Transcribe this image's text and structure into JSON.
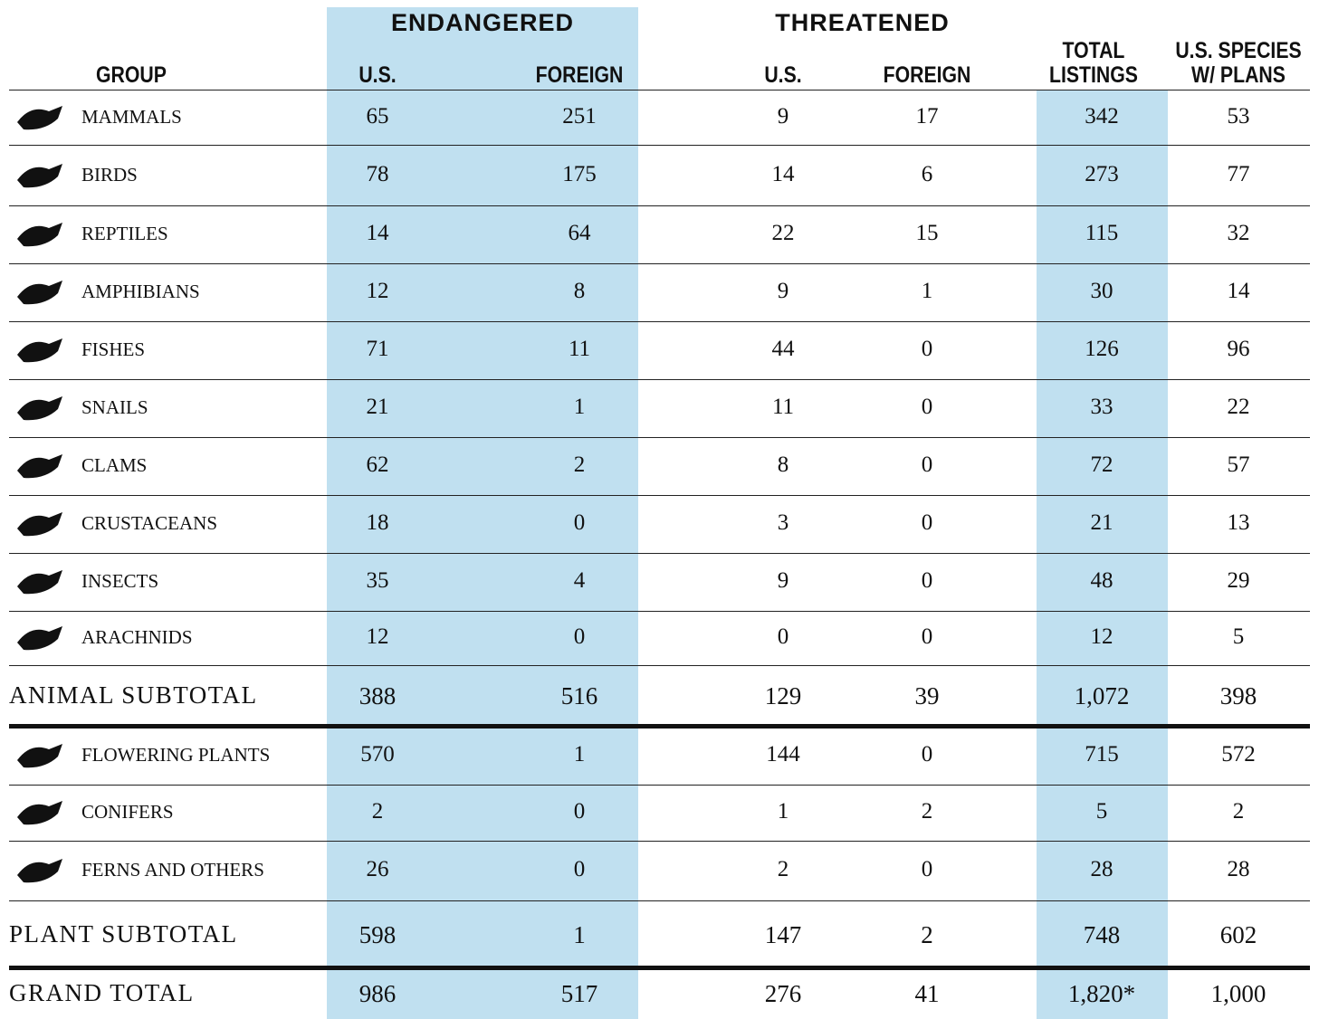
{
  "header": {
    "groups": [
      "ENDANGERED",
      "THREATENED"
    ],
    "columns": [
      "GROUP",
      "U.S.",
      "FOREIGN",
      "U.S.",
      "FOREIGN",
      "TOTAL LISTINGS",
      "U.S. SPECIES W/ PLANS"
    ]
  },
  "table": {
    "rows": [
      [
        "MAMMALS",
        "65",
        "251",
        "9",
        "17",
        "342",
        "53"
      ],
      [
        "BIRDS",
        "78",
        "175",
        "14",
        "6",
        "273",
        "77"
      ],
      [
        "REPTILES",
        "14",
        "64",
        "22",
        "15",
        "115",
        "32"
      ],
      [
        "AMPHIBIANS",
        "12",
        "8",
        "9",
        "1",
        "30",
        "14"
      ],
      [
        "FISHES",
        "71",
        "11",
        "44",
        "0",
        "126",
        "96"
      ],
      [
        "SNAILS",
        "21",
        "1",
        "11",
        "0",
        "33",
        "22"
      ],
      [
        "CLAMS",
        "62",
        "2",
        "8",
        "0",
        "72",
        "57"
      ],
      [
        "CRUSTACEANS",
        "18",
        "0",
        "3",
        "0",
        "21",
        "13"
      ],
      [
        "INSECTS",
        "35",
        "4",
        "9",
        "0",
        "48",
        "29"
      ],
      [
        "ARACHNIDS",
        "12",
        "0",
        "0",
        "0",
        "12",
        "5"
      ],
      [
        "ANIMAL SUBTOTAL",
        "388",
        "516",
        "129",
        "39",
        "1,072",
        "398"
      ],
      [
        "FLOWERING PLANTS",
        "570",
        "1",
        "144",
        "0",
        "715",
        "572"
      ],
      [
        "CONIFERS",
        "2",
        "0",
        "1",
        "2",
        "5",
        "2"
      ],
      [
        "FERNS AND OTHERS",
        "26",
        "0",
        "2",
        "0",
        "28",
        "28"
      ],
      [
        "PLANT SUBTOTAL",
        "598",
        "1",
        "147",
        "2",
        "748",
        "602"
      ],
      [
        "GRAND TOTAL",
        "986",
        "517",
        "276",
        "41",
        "1,820*",
        "1,000"
      ]
    ]
  }
}
